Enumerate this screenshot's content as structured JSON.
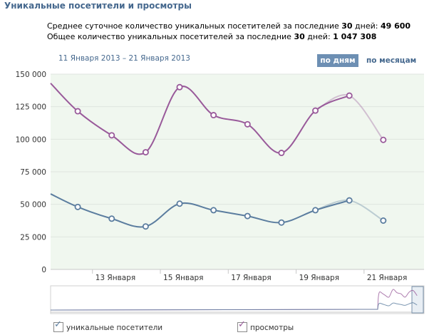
{
  "title": "Уникальные посетители и просмотры",
  "stats": {
    "line1_prefix": "Среднее суточное количество уникальных посетителей за последние ",
    "line1_days": "30",
    "line1_mid": " дней: ",
    "line1_value": "49 600",
    "line2_prefix": "Общее количество уникальных посетителей за последние ",
    "line2_days": "30",
    "line2_mid": " дней: ",
    "line2_value": "1 047 308"
  },
  "date_range": "11 Января 2013 – 21 Января 2013",
  "buttons": {
    "by_day": "по дням",
    "by_month": "по месяцам"
  },
  "legend": {
    "visitors": "уникальные посетители",
    "views": "просмотры"
  },
  "colors": {
    "visitors": "#5b7d9f",
    "views": "#995a9a",
    "plot_bg": "#f0f7ef",
    "accent": "#6d8fb3"
  },
  "chart_data": {
    "type": "line",
    "y_ticks": [
      "0",
      "25 000",
      "50 000",
      "75 000",
      "100 000",
      "125 000",
      "150 000"
    ],
    "ylim": [
      0,
      150000
    ],
    "x_labels": [
      "13 Января",
      "15 Января",
      "17 Января",
      "19 Января",
      "21 Января"
    ],
    "x_label_days": [
      13,
      15,
      17,
      19,
      21
    ],
    "xlim": [
      11.2,
      22.2
    ],
    "series": [
      {
        "name": "просмотры",
        "color": "#995a9a",
        "points": [
          [
            11.2,
            143000
          ],
          [
            12,
            121500
          ],
          [
            13,
            103000
          ],
          [
            14,
            90000
          ],
          [
            15,
            140000
          ],
          [
            16,
            118500
          ],
          [
            17,
            111500
          ],
          [
            18,
            89500
          ],
          [
            19,
            122000
          ],
          [
            20,
            133500
          ],
          [
            21,
            99500
          ]
        ]
      },
      {
        "name": "уникальные посетители",
        "color": "#5b7d9f",
        "points": [
          [
            11.2,
            58000
          ],
          [
            12,
            48000
          ],
          [
            13,
            39000
          ],
          [
            14,
            33000
          ],
          [
            15,
            50500
          ],
          [
            16,
            45500
          ],
          [
            17,
            41000
          ],
          [
            18,
            36000
          ],
          [
            19,
            45500
          ],
          [
            20,
            53000
          ],
          [
            21,
            37500
          ]
        ]
      }
    ]
  }
}
